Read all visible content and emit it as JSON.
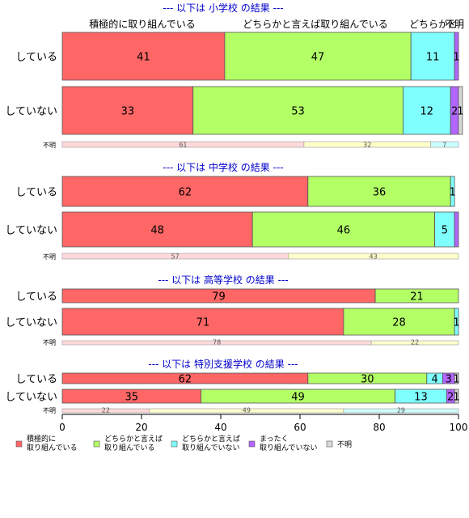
{
  "chart_data": {
    "type": "bar",
    "orientation": "horizontal",
    "stacked": true,
    "xlim": [
      0,
      100
    ],
    "x_ticks": [
      "0",
      "20",
      "40",
      "60",
      "80",
      "100"
    ],
    "colors": {
      "category_1": "#ff6666",
      "category_2": "#b3ff66",
      "category_3": "#80ffff",
      "category_4": "#b366ff",
      "category_5": "#d9d9d9",
      "unknown_1": "#ffd9d9",
      "unknown_2": "#ffffcc",
      "unknown_3": "#ccffff",
      "title": "#0000cc"
    },
    "legend": {
      "placement": "bottom",
      "entries": [
        "積極的に\n取り組んでいる",
        "どちらかと言えば\n取り組んでいる",
        "どちらかと言えば\n取り組んでいない",
        "まったく\n取り組んでいない",
        "不明"
      ]
    },
    "top_headers": [
      "積極的に取り組んでいる",
      "どちらかと言えば取り組んでいる",
      "どちらかと",
      "不明"
    ],
    "panels": [
      {
        "title": "--- 以下は 小学校 の結果 ---",
        "rows": [
          {
            "label": "している",
            "values": [
              41,
              47,
              11,
              1,
              0
            ],
            "labels": [
              "41",
              "47",
              "11",
              "1",
              ""
            ]
          },
          {
            "label": "していない",
            "values": [
              33,
              53,
              12,
              2,
              1
            ],
            "labels": [
              "33",
              "53",
              "12",
              "2",
              "1"
            ]
          }
        ],
        "unknown": {
          "label": "不明",
          "values": [
            61,
            32,
            7
          ],
          "labels": [
            "61",
            "32",
            "7"
          ]
        }
      },
      {
        "title": "--- 以下は 中学校 の結果 ---",
        "rows": [
          {
            "label": "している",
            "values": [
              62,
              36,
              1,
              0,
              0
            ],
            "labels": [
              "62",
              "36",
              "1",
              "",
              ""
            ]
          },
          {
            "label": "していない",
            "values": [
              48,
              46,
              5,
              1,
              0
            ],
            "labels": [
              "48",
              "46",
              "5",
              "",
              ""
            ]
          }
        ],
        "unknown": {
          "label": "不明",
          "values": [
            57,
            43
          ],
          "labels": [
            "57",
            "43"
          ]
        }
      },
      {
        "title": "--- 以下は 高等学校 の結果 ---",
        "rows": [
          {
            "label": "している",
            "values": [
              79,
              21,
              0,
              0,
              0
            ],
            "labels": [
              "79",
              "21",
              "",
              "",
              ""
            ]
          },
          {
            "label": "していない",
            "values": [
              71,
              28,
              1,
              0,
              0
            ],
            "labels": [
              "71",
              "28",
              "1",
              "",
              ""
            ]
          }
        ],
        "unknown": {
          "label": "不明",
          "values": [
            78,
            22
          ],
          "labels": [
            "78",
            "22"
          ]
        }
      },
      {
        "title": "--- 以下は 特別支援学校 の結果 ---",
        "rows": [
          {
            "label": "している",
            "values": [
              62,
              30,
              4,
              3,
              1
            ],
            "labels": [
              "62",
              "30",
              "4",
              "3",
              "1"
            ]
          },
          {
            "label": "していない",
            "values": [
              35,
              49,
              13,
              2,
              1
            ],
            "labels": [
              "35",
              "49",
              "13",
              "2",
              "1"
            ]
          }
        ],
        "unknown": {
          "label": "不明",
          "values": [
            22,
            49,
            29
          ],
          "labels": [
            "22",
            "49",
            "29"
          ]
        }
      }
    ]
  }
}
